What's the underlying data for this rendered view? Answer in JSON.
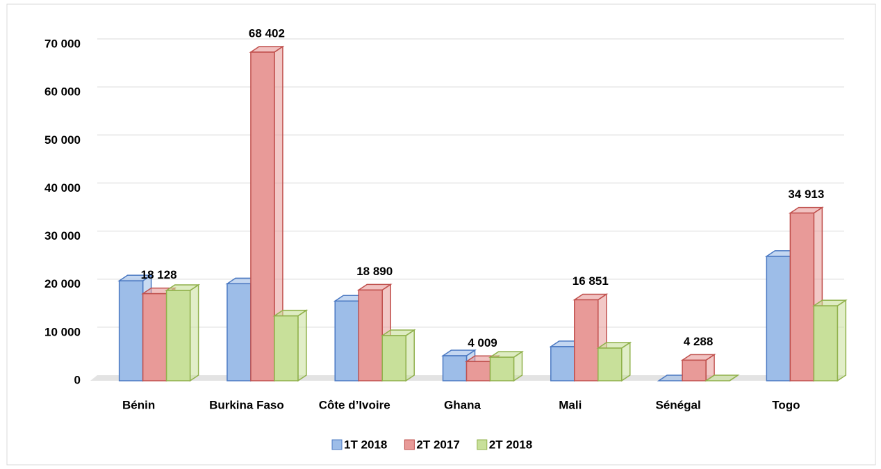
{
  "chart_data": {
    "type": "bar3d",
    "categories": [
      "Bénin",
      "Burkina Faso",
      "Côte d’Ivoire",
      "Ghana",
      "Mali",
      "Sénégal",
      "Togo"
    ],
    "series": [
      {
        "name": "1T 2018",
        "color": "#9dbde8",
        "values": [
          20800,
          20200,
          16600,
          5200,
          7100,
          0,
          25900
        ]
      },
      {
        "name": "2T 2017",
        "color": "#e89a98",
        "values": [
          18128,
          68402,
          18890,
          4009,
          16851,
          4288,
          34913
        ],
        "value_labels": [
          "18 128",
          "68 402",
          "18 890",
          "4 009",
          "16 851",
          "4 288",
          "34 913"
        ]
      },
      {
        "name": "2T 2018",
        "color": "#c8e09a",
        "values": [
          18800,
          13500,
          9400,
          4900,
          6800,
          0,
          15600
        ]
      }
    ],
    "ylim": [
      0,
      70000
    ],
    "yticks": [
      0,
      {
        "value": 10000,
        "label": "10 000"
      },
      {
        "value": 20000,
        "label": "20 000"
      },
      {
        "value": 30000,
        "label": "30 000"
      },
      {
        "value": 40000,
        "label": "40 000"
      },
      {
        "value": 50000,
        "label": "50 000"
      },
      {
        "value": 60000,
        "label": "60 000"
      },
      {
        "value": 70000,
        "label": "70 000"
      }
    ],
    "grid": true,
    "legend": "bottom"
  }
}
